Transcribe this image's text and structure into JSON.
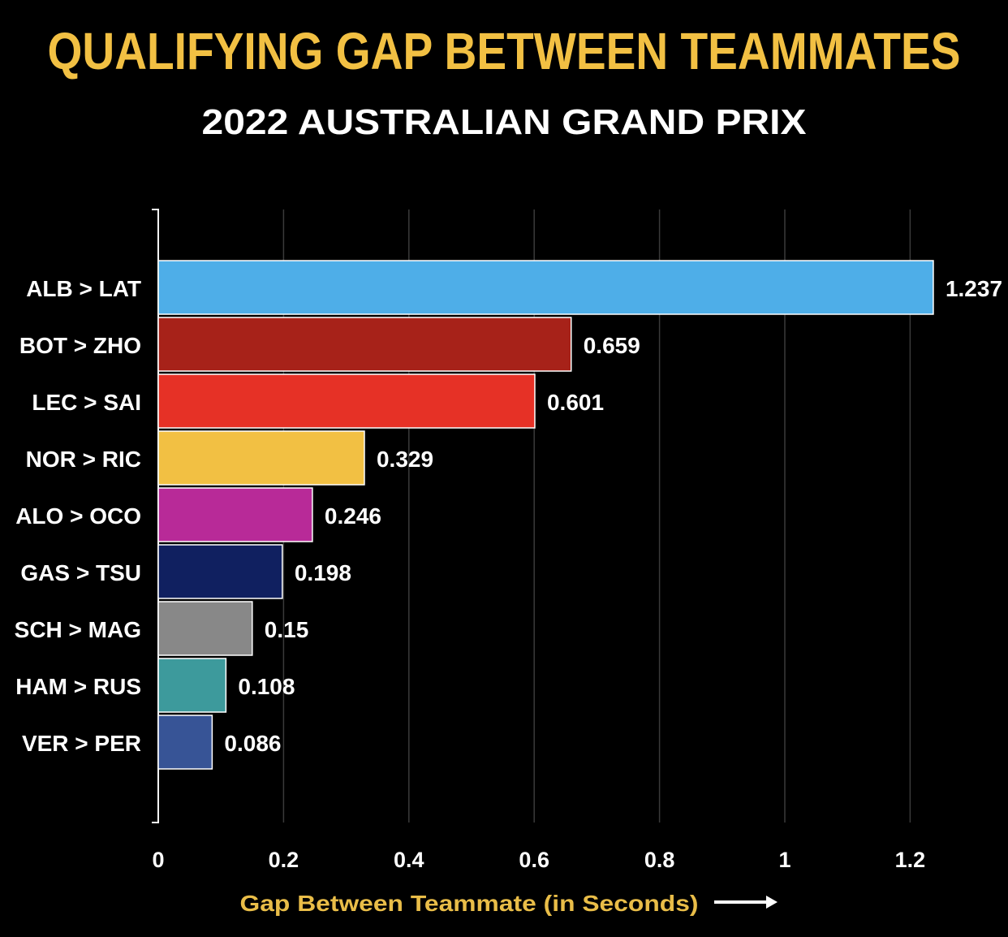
{
  "chart_data": {
    "type": "bar",
    "orientation": "horizontal",
    "title": "QUALIFYING GAP BETWEEN TEAMMATES",
    "subtitle": "2022 AUSTRALIAN GRAND PRIX",
    "xlabel": "Gap Between Teammate (in Seconds)",
    "ylabel": "",
    "xlim": [
      0,
      1.237
    ],
    "xticks": [
      0,
      0.2,
      0.4,
      0.6,
      0.8,
      1,
      1.2
    ],
    "xtick_labels": [
      "0",
      "0.2",
      "0.4",
      "0.6",
      "0.8",
      "1",
      "1.2"
    ],
    "grid": "vertical",
    "categories": [
      "ALB > LAT",
      "BOT > ZHO",
      "LEC > SAI",
      "NOR > RIC",
      "ALO > OCO",
      "GAS > TSU",
      "SCH > MAG",
      "HAM > RUS",
      "VER > PER"
    ],
    "values": [
      1.237,
      0.659,
      0.601,
      0.329,
      0.246,
      0.198,
      0.15,
      0.108,
      0.086
    ],
    "value_labels": [
      "1.237",
      "0.659",
      "0.601",
      "0.329",
      "0.246",
      "0.198",
      "0.15",
      "0.108",
      "0.086"
    ],
    "colors": [
      "#4eaee8",
      "#a72219",
      "#e63126",
      "#f2c043",
      "#b82a98",
      "#102060",
      "#888888",
      "#3d9a9c",
      "#375496"
    ],
    "title_color": "#f2c043",
    "subtitle_color": "#ffffff",
    "xlabel_color": "#e9bd48",
    "text_color": "#ffffff",
    "background": "#000000"
  }
}
